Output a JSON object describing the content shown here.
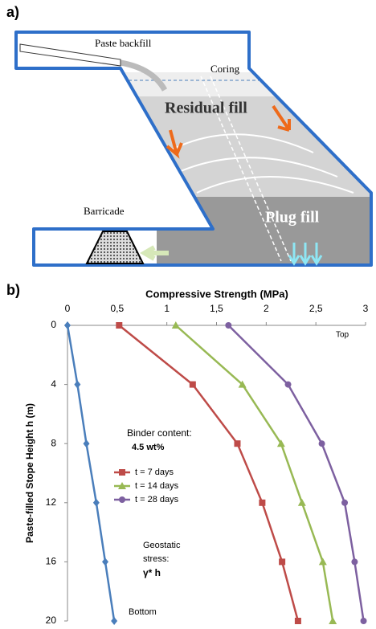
{
  "panel_a": {
    "label": "a)",
    "labels": {
      "paste": "Paste backfill",
      "coring": "Coring",
      "residual": "Residual fill",
      "barricade": "Barricade",
      "plug": "Plug fill"
    }
  },
  "chart_data": {
    "type": "line",
    "panel_label": "b)",
    "x_label": "Compressive Strength (MPa)",
    "y_label": "Paste-filled Stope Height h (m)",
    "xlim": [
      0,
      3
    ],
    "xticks": [
      0,
      {
        "value": 0.5,
        "label": "0,5"
      },
      1,
      {
        "value": 1.5,
        "label": "1,5"
      },
      2,
      {
        "value": 2.5,
        "label": "2,5"
      },
      3
    ],
    "ylim": [
      0,
      20
    ],
    "y_reversed": true,
    "yticks": [
      0,
      4,
      8,
      12,
      16,
      20
    ],
    "y": [
      0,
      4,
      8,
      12,
      16,
      20
    ],
    "series": [
      {
        "color": "#4a7ebb",
        "marker": "diamond",
        "values": [
          0,
          0.1,
          0.19,
          0.29,
          0.38,
          0.47
        ]
      },
      {
        "name": "t = 7 days",
        "color": "#be4b48",
        "marker": "square",
        "values": [
          0.52,
          1.26,
          1.71,
          1.96,
          2.16,
          2.32
        ]
      },
      {
        "name": "t = 14 days",
        "color": "#98b954",
        "marker": "triangle",
        "values": [
          1.09,
          1.76,
          2.15,
          2.36,
          2.57,
          2.67
        ]
      },
      {
        "name": "t = 28 days",
        "color": "#7d60a0",
        "marker": "circle",
        "values": [
          1.62,
          2.22,
          2.56,
          2.79,
          2.89,
          2.98
        ]
      }
    ],
    "annotations": [
      "Top",
      "Binder content:",
      "4.5 wt%",
      "Geostatic",
      "stress:",
      "γ* h",
      "Bottom"
    ]
  }
}
